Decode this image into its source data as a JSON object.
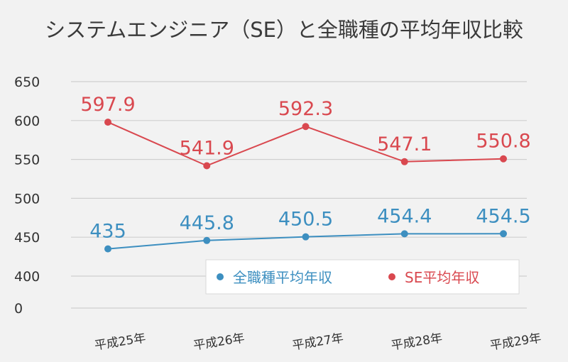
{
  "chart_data": {
    "type": "line",
    "title": "システムエンジニア（SE）と全職種の平均年収比較",
    "categories": [
      "平成25年",
      "平成26年",
      "平成27年",
      "平成28年",
      "平成29年"
    ],
    "y_ticks": [
      "0",
      "400",
      "450",
      "500",
      "550",
      "600",
      "650"
    ],
    "y_axis_break": true,
    "ylim": [
      400,
      650
    ],
    "grid": true,
    "legend_position": "bottom-right inside plot",
    "series": [
      {
        "name": "全職種平均年収",
        "color": "#3d8fc0",
        "values": [
          435,
          445.8,
          450.5,
          454.4,
          454.5
        ],
        "labels": [
          "435",
          "445.8",
          "450.5",
          "454.4",
          "454.5"
        ]
      },
      {
        "name": "SE平均年収",
        "color": "#d9484f",
        "values": [
          597.9,
          541.9,
          592.3,
          547.1,
          550.8
        ],
        "labels": [
          "597.9",
          "541.9",
          "592.3",
          "547.1",
          "550.8"
        ]
      }
    ]
  }
}
